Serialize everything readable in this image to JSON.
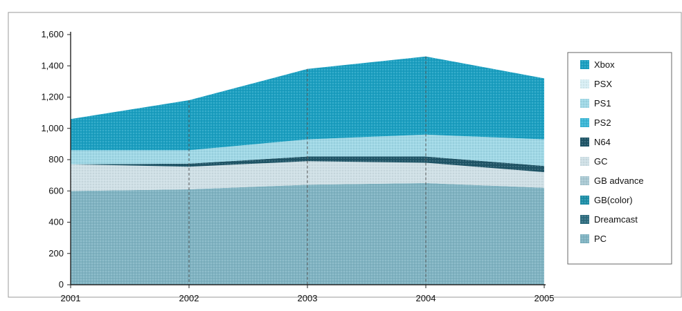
{
  "chart_data": {
    "type": "area",
    "stacked": true,
    "x": [
      "2001",
      "2002",
      "2003",
      "2004",
      "2005"
    ],
    "yticks": [
      "0",
      "200",
      "400",
      "600",
      "800",
      "1,000",
      "1,200",
      "1,400",
      "1,600"
    ],
    "ylim": [
      0,
      1600
    ],
    "grid": "vertical-dashed",
    "legend_placement": "right",
    "series": [
      {
        "name": "PC",
        "color": "#7fb3c2",
        "values": [
          600,
          610,
          640,
          650,
          620
        ]
      },
      {
        "name": "Dreamcast",
        "color": "#2f6d80",
        "values": [
          0,
          0,
          0,
          0,
          0
        ]
      },
      {
        "name": "GB(color)",
        "color": "#1e8fa8",
        "values": [
          0,
          0,
          0,
          0,
          0
        ]
      },
      {
        "name": "GB advance",
        "color": "#a9c9d3",
        "values": [
          0,
          0,
          0,
          0,
          0
        ]
      },
      {
        "name": "GC",
        "color": "#cfe0e6",
        "values": [
          170,
          145,
          150,
          130,
          100
        ]
      },
      {
        "name": "N64",
        "color": "#1f5567",
        "values": [
          0,
          20,
          30,
          40,
          40
        ]
      },
      {
        "name": "PS2",
        "color": "#3ab6d6",
        "values": [
          0,
          0,
          0,
          0,
          0
        ]
      },
      {
        "name": "PS1",
        "color": "#9fd8e6",
        "values": [
          90,
          85,
          110,
          140,
          170
        ]
      },
      {
        "name": "PSX",
        "color": "#d7eef4",
        "values": [
          0,
          0,
          0,
          0,
          0
        ]
      },
      {
        "name": "Xbox",
        "color": "#1a9fc1",
        "values": [
          200,
          320,
          450,
          500,
          390
        ]
      }
    ],
    "legend_order": [
      "Xbox",
      "PSX",
      "PS1",
      "PS2",
      "N64",
      "GC",
      "GB advance",
      "GB(color)",
      "Dreamcast",
      "PC"
    ]
  }
}
